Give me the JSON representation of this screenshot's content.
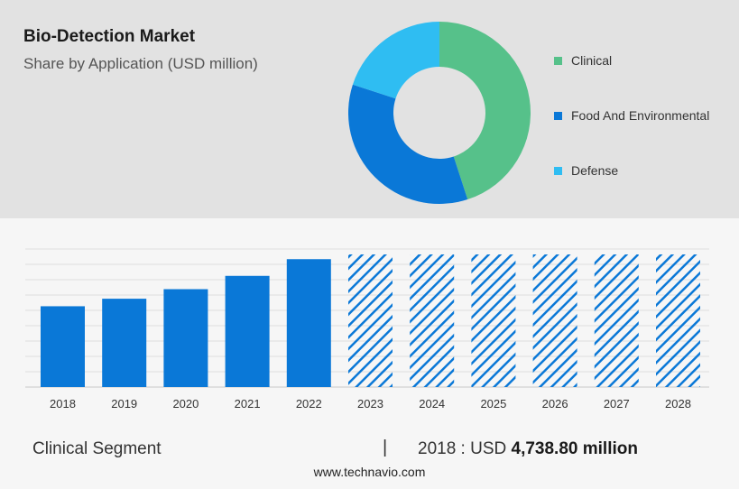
{
  "header": {
    "title": "Bio-Detection Market",
    "subtitle": "Share by Application (USD million)"
  },
  "colors": {
    "clinical": "#56c18a",
    "food": "#0a78d7",
    "defense": "#2fbdf2",
    "bar": "#0a78d7",
    "hatch": "#0a78d7"
  },
  "donut": {
    "segments": [
      {
        "label": "Clinical",
        "share": 0.45,
        "color": "#56c18a"
      },
      {
        "label": "Food And Environmental",
        "share": 0.35,
        "color": "#0a78d7"
      },
      {
        "label": "Defense",
        "share": 0.2,
        "color": "#2fbdf2"
      }
    ]
  },
  "chart_data": [
    {
      "type": "pie",
      "categories": [
        "Clinical",
        "Food And Environmental",
        "Defense"
      ],
      "values": [
        45,
        35,
        20
      ]
    },
    {
      "type": "bar",
      "categories": [
        "2018",
        "2019",
        "2020",
        "2021",
        "2022",
        "2023",
        "2024",
        "2025",
        "2026",
        "2027",
        "2028"
      ],
      "values": [
        4738.8,
        5180,
        5740,
        6520,
        7500,
        null,
        null,
        null,
        null,
        null,
        null
      ],
      "forecast_categories": [
        "2023",
        "2024",
        "2025",
        "2026",
        "2027",
        "2028"
      ],
      "grid": true
    }
  ],
  "footer": {
    "segment_label": "Clinical Segment",
    "separator": "|",
    "year_label": "2018 : USD",
    "value": "4,738.80 million",
    "site": "www.technavio.com"
  }
}
